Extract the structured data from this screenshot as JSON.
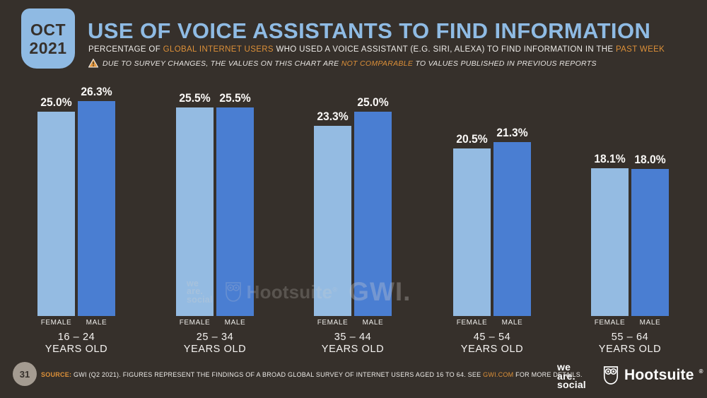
{
  "slide": {
    "date_badge": {
      "month": "OCT",
      "year": "2021"
    },
    "title": "USE OF VOICE ASSISTANTS TO FIND INFORMATION",
    "subtitle": {
      "part1": "PERCENTAGE OF ",
      "highlight1": "GLOBAL INTERNET USERS",
      "part2": " WHO USED A VOICE ASSISTANT (E.G. SIRI, ALEXA) TO FIND INFORMATION IN THE ",
      "highlight2": "PAST WEEK"
    },
    "warning": {
      "part1": "DUE TO SURVEY CHANGES, THE VALUES ON THIS CHART ARE ",
      "highlight": "NOT COMPARABLE",
      "part2": " TO VALUES PUBLISHED IN PREVIOUS REPORTS"
    },
    "watermarks": {
      "we_are_social": {
        "line1": "we",
        "line2": "are.",
        "line3": "social"
      },
      "hootsuite": "Hootsuite",
      "registered": "®",
      "gwi": "GWI."
    },
    "footer": {
      "page_number": "31",
      "source_label": "SOURCE:",
      "source_part1": " GWI (Q2 2021). FIGURES REPRESENT THE FINDINGS OF A BROAD GLOBAL SURVEY OF INTERNET USERS AGED 16 TO 64. SEE ",
      "source_link": "GWI.COM",
      "source_part2": " FOR MORE DETAILS.",
      "we_are_social": {
        "line1": "we",
        "line2": "are.",
        "line3": "social"
      },
      "hootsuite": "Hootsuite",
      "registered": "®"
    }
  },
  "colors": {
    "background": "#36302B",
    "accent_blue": "#8FBBE4",
    "orange": "#DD9038",
    "female_bar": "#94BBE2",
    "male_bar": "#4A7ED2",
    "page_circle": "#A49B91"
  },
  "chart_data": {
    "type": "bar",
    "title": "USE OF VOICE ASSISTANTS TO FIND INFORMATION",
    "subtitle": "Percentage of global internet users who used a voice assistant (e.g. Siri, Alexa) to find information in the past week",
    "categories": [
      "16 – 24",
      "25 – 34",
      "35 – 44",
      "45 – 54",
      "55 – 64"
    ],
    "category_suffix": "YEARS OLD",
    "series": [
      {
        "name": "FEMALE",
        "color": "#94BBE2",
        "values": [
          25.0,
          25.5,
          23.3,
          20.5,
          18.1
        ]
      },
      {
        "name": "MALE",
        "color": "#4A7ED2",
        "values": [
          26.3,
          25.5,
          25.0,
          21.3,
          18.0
        ]
      }
    ],
    "value_suffix": "%",
    "ylim": [
      0,
      30
    ],
    "grid": false,
    "legend_position": "below-each-bar",
    "value_labels": "above-bars",
    "source": "GWI (Q2 2021)"
  }
}
